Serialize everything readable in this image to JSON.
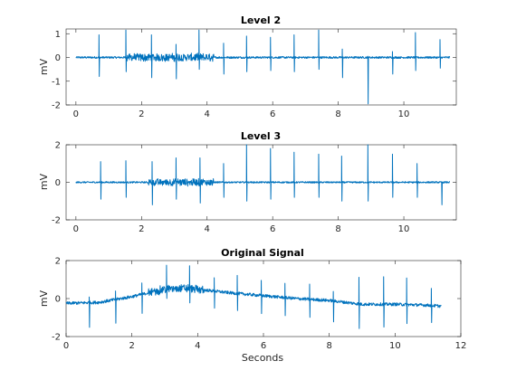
{
  "chart_data": [
    {
      "type": "line",
      "title": "Level 2",
      "xlabel": "",
      "ylabel": "mV",
      "xlim": [
        -0.3,
        11.6
      ],
      "ylim": [
        -2,
        1.2
      ],
      "xticks": [
        0,
        2,
        4,
        6,
        8,
        10
      ],
      "yticks": [
        -2,
        -1,
        0,
        1
      ],
      "line_color": "#0072bd",
      "beats": [
        {
          "t": 0.7,
          "up": 0.95,
          "down": -0.8
        },
        {
          "t": 1.52,
          "up": 1.15,
          "down": -0.6
        },
        {
          "t": 2.3,
          "up": 0.95,
          "down": -0.85
        },
        {
          "t": 3.05,
          "up": 0.55,
          "down": -0.9
        },
        {
          "t": 3.75,
          "up": 1.15,
          "down": -0.5
        },
        {
          "t": 4.5,
          "up": 0.6,
          "down": -0.7
        },
        {
          "t": 5.2,
          "up": 0.9,
          "down": -0.6
        },
        {
          "t": 5.93,
          "up": 0.85,
          "down": -0.55
        },
        {
          "t": 6.65,
          "up": 0.95,
          "down": -0.6
        },
        {
          "t": 7.4,
          "up": 1.15,
          "down": -0.5
        },
        {
          "t": 8.12,
          "up": 0.35,
          "down": -0.85
        },
        {
          "t": 8.9,
          "up": 0.05,
          "down": -1.95
        },
        {
          "t": 9.65,
          "up": 0.25,
          "down": -0.7
        },
        {
          "t": 10.35,
          "up": 1.05,
          "down": -0.55
        },
        {
          "t": 11.1,
          "up": 0.75,
          "down": -0.45
        }
      ]
    },
    {
      "type": "line",
      "title": "Level 3",
      "xlabel": "",
      "ylabel": "mV",
      "xlim": [
        -0.3,
        11.6
      ],
      "ylim": [
        -2,
        2
      ],
      "xticks": [
        0,
        2,
        4,
        6,
        8,
        10
      ],
      "yticks": [
        -2,
        0,
        2
      ],
      "line_color": "#0072bd",
      "beats": [
        {
          "t": 0.75,
          "up": 1.1,
          "down": -0.9
        },
        {
          "t": 1.52,
          "up": 1.15,
          "down": -0.8
        },
        {
          "t": 2.32,
          "up": 1.1,
          "down": -1.2
        },
        {
          "t": 3.05,
          "up": 1.3,
          "down": -0.9
        },
        {
          "t": 3.78,
          "up": 1.3,
          "down": -1.1
        },
        {
          "t": 4.5,
          "up": 1.0,
          "down": -0.8
        },
        {
          "t": 5.2,
          "up": 2.0,
          "down": -1.0
        },
        {
          "t": 5.93,
          "up": 1.8,
          "down": -0.9
        },
        {
          "t": 6.65,
          "up": 1.6,
          "down": -0.8
        },
        {
          "t": 7.4,
          "up": 1.5,
          "down": -0.8
        },
        {
          "t": 8.1,
          "up": 1.4,
          "down": -1.0
        },
        {
          "t": 8.9,
          "up": 2.0,
          "down": -1.0
        },
        {
          "t": 9.65,
          "up": 1.5,
          "down": -0.8
        },
        {
          "t": 10.4,
          "up": 1.0,
          "down": -0.8
        },
        {
          "t": 11.15,
          "up": 0.0,
          "down": -1.2
        }
      ]
    },
    {
      "type": "line",
      "title": "Original Signal",
      "xlabel": "Seconds",
      "ylabel": "mV",
      "xlim": [
        0,
        12
      ],
      "ylim": [
        -2,
        2
      ],
      "xticks": [
        0,
        2,
        4,
        6,
        8,
        10,
        12
      ],
      "yticks": [
        -2,
        0,
        2
      ],
      "line_color": "#0072bd",
      "baseline": [
        [
          0,
          -0.25
        ],
        [
          1.0,
          -0.2
        ],
        [
          2.0,
          0.1
        ],
        [
          3.0,
          0.5
        ],
        [
          3.6,
          0.55
        ],
        [
          4.2,
          0.45
        ],
        [
          5.0,
          0.3
        ],
        [
          6.0,
          0.15
        ],
        [
          7.0,
          0.0
        ],
        [
          8.0,
          -0.1
        ],
        [
          9.0,
          -0.3
        ],
        [
          10.0,
          -0.3
        ],
        [
          11.0,
          -0.35
        ],
        [
          11.4,
          -0.4
        ]
      ],
      "beats": [
        {
          "t": 0.7,
          "up": 0.3,
          "down": -1.3
        },
        {
          "t": 1.5,
          "up": 0.45,
          "down": -1.25
        },
        {
          "t": 2.3,
          "up": 0.6,
          "down": -1.0
        },
        {
          "t": 3.05,
          "up": 1.25,
          "down": -0.5
        },
        {
          "t": 3.75,
          "up": 1.2,
          "down": -0.75
        },
        {
          "t": 4.5,
          "up": 0.7,
          "down": -0.9
        },
        {
          "t": 5.2,
          "up": 0.95,
          "down": -0.9
        },
        {
          "t": 5.93,
          "up": 0.8,
          "down": -0.95
        },
        {
          "t": 6.65,
          "up": 0.75,
          "down": -0.95
        },
        {
          "t": 7.4,
          "up": 0.8,
          "down": -0.95
        },
        {
          "t": 8.12,
          "up": 0.5,
          "down": -1.1
        },
        {
          "t": 8.9,
          "up": 1.4,
          "down": -1.3
        },
        {
          "t": 9.65,
          "up": 1.45,
          "down": -1.2
        },
        {
          "t": 10.35,
          "up": 1.4,
          "down": -1.0
        },
        {
          "t": 11.1,
          "up": 0.9,
          "down": -0.9
        }
      ]
    }
  ]
}
